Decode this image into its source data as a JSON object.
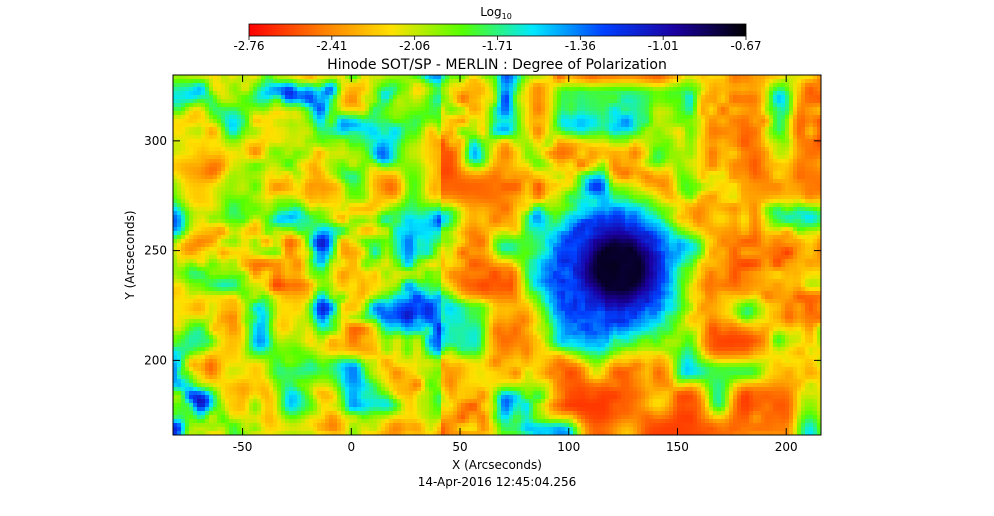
{
  "chart_data": {
    "type": "heatmap",
    "title": "Hinode SOT/SP - MERLIN : Degree of Polarization",
    "timestamp": "14-Apr-2016 12:45:04.256",
    "xlabel": "X (Arcseconds)",
    "ylabel": "Y (Arcseconds)",
    "xlim": [
      -82,
      216
    ],
    "ylim": [
      166,
      330
    ],
    "x_ticks": [
      -50,
      0,
      50,
      100,
      150,
      200
    ],
    "y_ticks": [
      200,
      250,
      300
    ],
    "colorbar": {
      "label": "Log",
      "label_subscript": "10",
      "range": [
        -2.76,
        -0.67
      ],
      "ticks": [
        "-2.76",
        "-2.41",
        "-2.06",
        "-1.71",
        "-1.36",
        "-1.01",
        "-0.67"
      ],
      "colors": [
        "#ff0000",
        "#ff7a00",
        "#ffe000",
        "#55ff00",
        "#00e8ff",
        "#0040ff",
        "#1a00a0",
        "#000000"
      ]
    },
    "features": [
      {
        "name": "sunspot umbra",
        "center": [
          122,
          243
        ],
        "radius": 17,
        "value": -0.72
      },
      {
        "name": "penumbra",
        "center": [
          118,
          242
        ],
        "radius": 40,
        "value": -1.25
      }
    ]
  }
}
